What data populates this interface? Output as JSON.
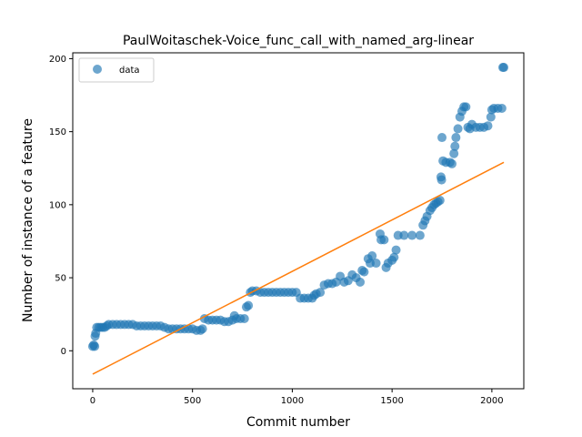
{
  "chart_data": {
    "type": "scatter",
    "title": "PaulWoitaschek-Voice_func_call_with_named_arg-linear",
    "xlabel": "Commit number",
    "ylabel": "Number of instance of a feature",
    "xlim": [
      -100,
      2160
    ],
    "ylim": [
      -26,
      204
    ],
    "x_ticks": [
      0,
      500,
      1000,
      1500,
      2000
    ],
    "y_ticks": [
      0,
      50,
      100,
      150,
      200
    ],
    "grid": false,
    "legend": {
      "position": "top-left",
      "entries": [
        "data"
      ]
    },
    "colors": {
      "data": "#1f77b4",
      "fit": "#ff7f0e"
    },
    "series": [
      {
        "name": "data",
        "kind": "scatter",
        "points": [
          [
            0,
            3
          ],
          [
            5,
            4
          ],
          [
            10,
            3
          ],
          [
            12,
            10
          ],
          [
            15,
            12
          ],
          [
            20,
            16
          ],
          [
            30,
            16
          ],
          [
            40,
            16
          ],
          [
            50,
            16
          ],
          [
            60,
            16
          ],
          [
            70,
            17
          ],
          [
            80,
            18
          ],
          [
            100,
            18
          ],
          [
            120,
            18
          ],
          [
            140,
            18
          ],
          [
            160,
            18
          ],
          [
            180,
            18
          ],
          [
            200,
            18
          ],
          [
            220,
            17
          ],
          [
            240,
            17
          ],
          [
            260,
            17
          ],
          [
            280,
            17
          ],
          [
            300,
            17
          ],
          [
            320,
            17
          ],
          [
            340,
            17
          ],
          [
            360,
            16
          ],
          [
            380,
            15
          ],
          [
            400,
            15
          ],
          [
            420,
            15
          ],
          [
            440,
            15
          ],
          [
            460,
            15
          ],
          [
            480,
            15
          ],
          [
            500,
            15
          ],
          [
            520,
            14
          ],
          [
            540,
            14
          ],
          [
            550,
            15
          ],
          [
            560,
            22
          ],
          [
            580,
            21
          ],
          [
            600,
            21
          ],
          [
            620,
            21
          ],
          [
            640,
            21
          ],
          [
            660,
            20
          ],
          [
            680,
            20
          ],
          [
            700,
            21
          ],
          [
            710,
            24
          ],
          [
            720,
            22
          ],
          [
            740,
            22
          ],
          [
            760,
            22
          ],
          [
            770,
            30
          ],
          [
            780,
            31
          ],
          [
            790,
            40
          ],
          [
            800,
            41
          ],
          [
            820,
            41
          ],
          [
            840,
            40
          ],
          [
            860,
            40
          ],
          [
            880,
            40
          ],
          [
            900,
            40
          ],
          [
            920,
            40
          ],
          [
            940,
            40
          ],
          [
            960,
            40
          ],
          [
            980,
            40
          ],
          [
            1000,
            40
          ],
          [
            1020,
            40
          ],
          [
            1040,
            36
          ],
          [
            1060,
            36
          ],
          [
            1080,
            36
          ],
          [
            1100,
            36
          ],
          [
            1110,
            38
          ],
          [
            1120,
            39
          ],
          [
            1140,
            40
          ],
          [
            1160,
            45
          ],
          [
            1180,
            46
          ],
          [
            1200,
            46
          ],
          [
            1220,
            47
          ],
          [
            1240,
            51
          ],
          [
            1260,
            47
          ],
          [
            1280,
            48
          ],
          [
            1300,
            52
          ],
          [
            1320,
            50
          ],
          [
            1340,
            47
          ],
          [
            1350,
            55
          ],
          [
            1360,
            54
          ],
          [
            1380,
            63
          ],
          [
            1390,
            60
          ],
          [
            1400,
            65
          ],
          [
            1420,
            60
          ],
          [
            1440,
            80
          ],
          [
            1445,
            76
          ],
          [
            1460,
            76
          ],
          [
            1470,
            57
          ],
          [
            1480,
            60
          ],
          [
            1500,
            62
          ],
          [
            1510,
            64
          ],
          [
            1520,
            69
          ],
          [
            1530,
            79
          ],
          [
            1560,
            79
          ],
          [
            1600,
            79
          ],
          [
            1640,
            79
          ],
          [
            1655,
            86
          ],
          [
            1665,
            89
          ],
          [
            1675,
            92
          ],
          [
            1690,
            96
          ],
          [
            1700,
            98
          ],
          [
            1710,
            100
          ],
          [
            1720,
            101
          ],
          [
            1730,
            102
          ],
          [
            1740,
            103
          ],
          [
            1745,
            119
          ],
          [
            1748,
            117
          ],
          [
            1750,
            146
          ],
          [
            1755,
            130
          ],
          [
            1770,
            129
          ],
          [
            1790,
            129
          ],
          [
            1800,
            128
          ],
          [
            1810,
            135
          ],
          [
            1815,
            140
          ],
          [
            1820,
            146
          ],
          [
            1830,
            152
          ],
          [
            1840,
            160
          ],
          [
            1850,
            164
          ],
          [
            1860,
            167
          ],
          [
            1870,
            167
          ],
          [
            1880,
            153
          ],
          [
            1890,
            152
          ],
          [
            1900,
            155
          ],
          [
            1920,
            153
          ],
          [
            1940,
            153
          ],
          [
            1960,
            153
          ],
          [
            1980,
            154
          ],
          [
            1995,
            160
          ],
          [
            2000,
            165
          ],
          [
            2010,
            166
          ],
          [
            2030,
            166
          ],
          [
            2050,
            166
          ],
          [
            2055,
            194
          ],
          [
            2060,
            194
          ]
        ]
      },
      {
        "name": "",
        "kind": "line",
        "points": [
          [
            0,
            -16
          ],
          [
            2060,
            129
          ]
        ]
      }
    ]
  }
}
